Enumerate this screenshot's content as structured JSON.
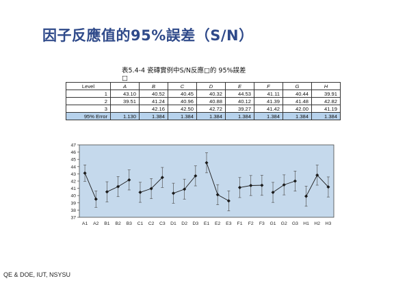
{
  "slide": {
    "title": "因子反應值的95%誤差（S/N）",
    "footer": "QE & DOE, IUT, NSYSU"
  },
  "table": {
    "caption": "表5.4-4  瓷磚實例中S/N反應□的 95%誤差\n□",
    "corner_label": "Level",
    "columns": [
      "A",
      "B",
      "C",
      "D",
      "E",
      "F",
      "G",
      "H"
    ],
    "rows": [
      {
        "label": "1",
        "values": [
          "43.10",
          "40.52",
          "40.45",
          "40.32",
          "44.53",
          "41.11",
          "40.44",
          "39.91"
        ]
      },
      {
        "label": "2",
        "values": [
          "39.51",
          "41.24",
          "40.96",
          "40.88",
          "40.12",
          "41.39",
          "41.48",
          "42.82"
        ]
      },
      {
        "label": "3",
        "values": [
          "",
          "42.16",
          "42.50",
          "42.72",
          "39.27",
          "41.42",
          "42.00",
          "41.19"
        ]
      }
    ],
    "error_row": {
      "label": "95% Error",
      "values": [
        "1.130",
        "1.384",
        "1.384",
        "1.384",
        "1.384",
        "1.384",
        "1.384",
        "1.384"
      ]
    }
  },
  "chart_data": {
    "type": "scatter",
    "title": "",
    "xlabel": "",
    "ylabel": "",
    "ylim": [
      37,
      47
    ],
    "yticks": [
      37,
      38,
      39,
      40,
      41,
      42,
      43,
      44,
      45,
      46,
      47
    ],
    "grid": false,
    "background_color": "#c5d9ec",
    "marker_color": "#1a1a1a",
    "categories": [
      "A1",
      "A2",
      "B1",
      "B2",
      "B3",
      "C1",
      "C2",
      "C3",
      "D1",
      "D2",
      "D3",
      "E1",
      "E2",
      "E3",
      "F1",
      "F2",
      "F3",
      "G1",
      "G2",
      "G3",
      "H1",
      "H2",
      "H3"
    ],
    "groups": [
      {
        "factor": "A",
        "values": [
          43.1,
          39.51
        ],
        "error": 1.13
      },
      {
        "factor": "B",
        "values": [
          40.52,
          41.24,
          42.16
        ],
        "error": 1.384
      },
      {
        "factor": "C",
        "values": [
          40.45,
          40.96,
          42.5
        ],
        "error": 1.384
      },
      {
        "factor": "D",
        "values": [
          40.32,
          40.88,
          42.72
        ],
        "error": 1.384
      },
      {
        "factor": "E",
        "values": [
          44.53,
          40.12,
          39.27
        ],
        "error": 1.384
      },
      {
        "factor": "F",
        "values": [
          41.11,
          41.39,
          41.42
        ],
        "error": 1.384
      },
      {
        "factor": "G",
        "values": [
          40.44,
          41.48,
          42.0
        ],
        "error": 1.384
      },
      {
        "factor": "H",
        "values": [
          39.91,
          42.82,
          41.19
        ],
        "error": 1.384
      }
    ]
  }
}
